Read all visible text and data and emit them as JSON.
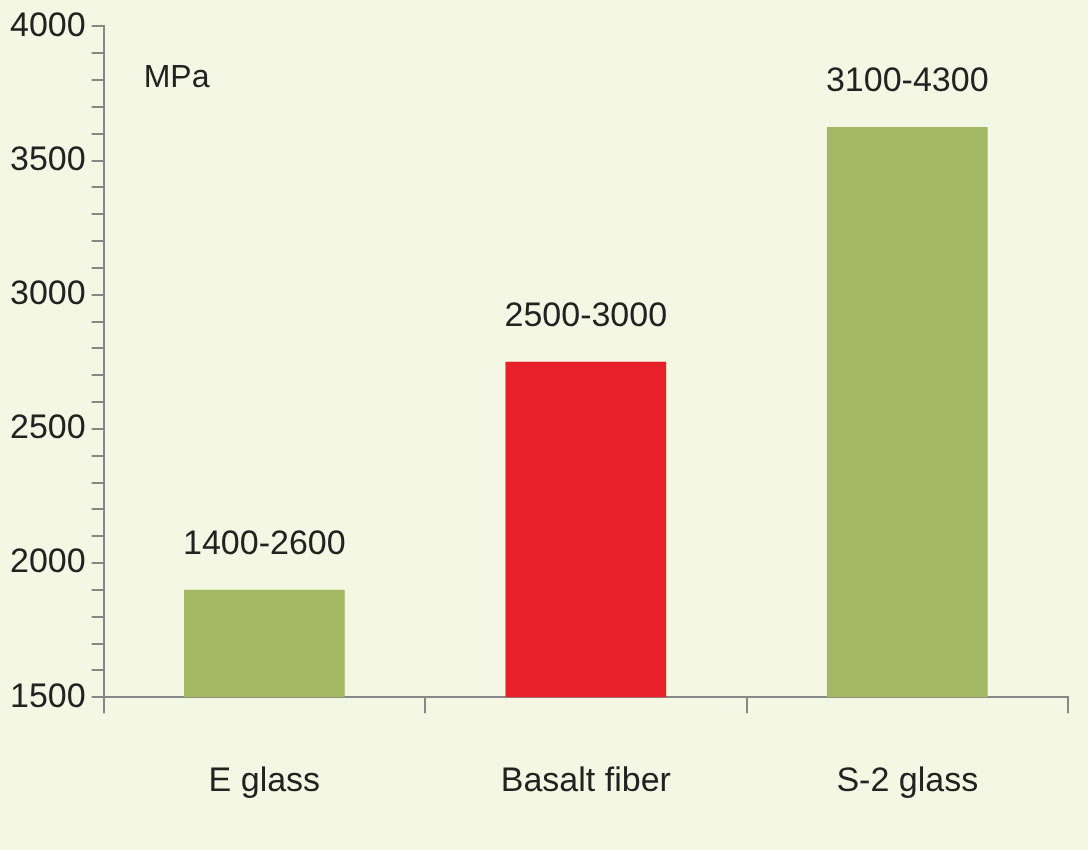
{
  "chart_data": {
    "type": "bar",
    "ylabel": "MPa",
    "categories": [
      "E glass",
      "Basalt fiber",
      "S-2 glass"
    ],
    "values": [
      1900,
      2750,
      3625
    ],
    "colors": [
      "#a3b862",
      "#e8202a",
      "#a3b862"
    ],
    "value_labels": [
      "1400-2600",
      "2500-3000",
      "3100-4300"
    ],
    "ylim": [
      1500,
      4000
    ],
    "yticks": [
      1500,
      {
        "value": 1600,
        "label": null
      },
      {
        "value": 1700,
        "label": null
      },
      {
        "value": 1800,
        "label": null
      },
      {
        "value": 1900,
        "label": null
      },
      2000,
      {
        "value": 2100,
        "label": null
      },
      {
        "value": 2200,
        "label": null
      },
      {
        "value": 2300,
        "label": null
      },
      {
        "value": 2400,
        "label": null
      },
      2500,
      {
        "value": 2600,
        "label": null
      },
      {
        "value": 2700,
        "label": null
      },
      {
        "value": 2800,
        "label": null
      },
      {
        "value": 2900,
        "label": null
      },
      3000,
      {
        "value": 3100,
        "label": null
      },
      {
        "value": 3200,
        "label": null
      },
      {
        "value": 3300,
        "label": null
      },
      {
        "value": 3400,
        "label": null
      },
      3500,
      {
        "value": 3600,
        "label": null
      },
      {
        "value": 3700,
        "label": null
      },
      {
        "value": 3800,
        "label": null
      },
      {
        "value": 3900,
        "label": null
      },
      4000
    ],
    "grid": false,
    "legend": false
  }
}
